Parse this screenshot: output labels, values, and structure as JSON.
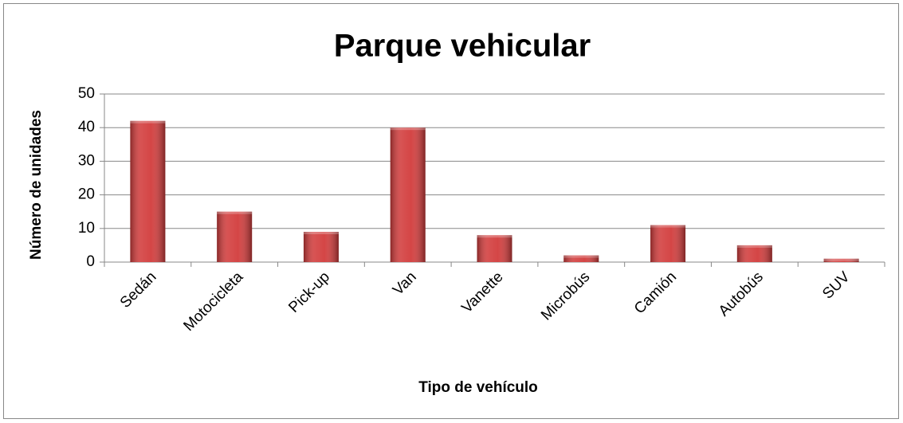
{
  "chart_data": {
    "type": "bar",
    "title": "Parque vehicular",
    "x_label": "Tipo de vehículo",
    "y_label": "Número de unidades",
    "categories": [
      "Sedán",
      "Motocicleta",
      "Pick-up",
      "Van",
      "Vanette",
      "Microbús",
      "Camión",
      "Autobús",
      "SUV"
    ],
    "values": [
      42,
      15,
      9,
      40,
      8,
      2,
      11,
      5,
      1
    ],
    "color": "#d23c3c",
    "ylim": [
      0,
      50
    ],
    "yticks": [
      0,
      10,
      20,
      30,
      40,
      50
    ],
    "grid": true
  }
}
